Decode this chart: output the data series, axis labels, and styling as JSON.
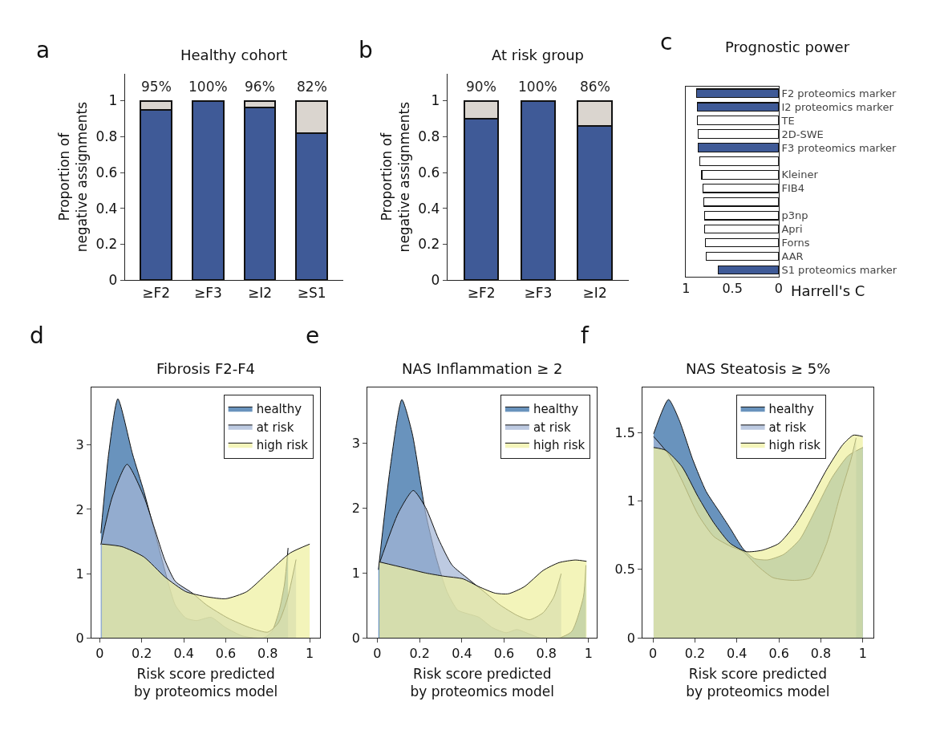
{
  "chart_data": [
    {
      "type": "bar",
      "stacked": true,
      "title": "Healthy cohort",
      "ylabel": "Proportion of\nnegative assignments",
      "categories": [
        "≥F2",
        "≥F3",
        "≥I2",
        "≥S1"
      ],
      "ylim": [
        0,
        1.15
      ],
      "yticks": [
        0,
        0.2,
        0.4,
        0.6,
        0.8,
        1
      ],
      "grid": false,
      "series": [
        {
          "color": "#3f5a97",
          "values": [
            0.95,
            1.0,
            0.96,
            0.82
          ],
          "value_labels": [
            "95%",
            "100%",
            "96%",
            "82%"
          ]
        },
        {
          "color": "#dad5cf",
          "values": [
            0.05,
            0,
            0.04,
            0.18
          ]
        }
      ],
      "annotations": [
        "a"
      ]
    },
    {
      "type": "bar",
      "stacked": true,
      "title": "At risk group",
      "ylabel": "Proportion of\nnegative assignments",
      "categories": [
        "≥F2",
        "≥F3",
        "≥I2"
      ],
      "ylim": [
        0,
        1.15
      ],
      "yticks": [
        0,
        0.2,
        0.4,
        0.6,
        0.8,
        1
      ],
      "grid": false,
      "series": [
        {
          "color": "#3f5a97",
          "values": [
            0.9,
            1.0,
            0.86
          ],
          "value_labels": [
            "90%",
            "100%",
            "86%"
          ]
        },
        {
          "color": "#dad5cf",
          "values": [
            0.1,
            0,
            0.14
          ]
        }
      ],
      "annotations": [
        "b"
      ]
    },
    {
      "type": "bar",
      "orientation": "horizontal",
      "title": "Prognostic power",
      "xlabel": "Harrell's C",
      "categories": [
        "F2 proteomics marker",
        "I2 proteomics marker",
        "TE",
        "2D-SWE",
        "F3 proteomics marker",
        null,
        "Kleiner",
        "FIB4",
        null,
        "p3np",
        "Apri",
        "Forns",
        "AAR",
        "S1 proteomics marker"
      ],
      "xlim": [
        1,
        0
      ],
      "xticks": [
        1,
        0.5,
        0
      ],
      "grid": false,
      "values": [
        0.89,
        0.88,
        0.88,
        0.87,
        0.87,
        0.85,
        0.83,
        0.82,
        0.81,
        0.8,
        0.8,
        0.79,
        0.78,
        0.65
      ],
      "colors": [
        "#3f5a97",
        "#3f5a97",
        "#ffffff",
        "#ffffff",
        "#3f5a97",
        "#ffffff",
        "#ffffff",
        "#ffffff",
        "#ffffff",
        "#ffffff",
        "#ffffff",
        "#ffffff",
        "#ffffff",
        "#3f5a97"
      ],
      "annotations": [
        "c"
      ]
    },
    {
      "type": "area",
      "title": "Fibrosis F2-F4",
      "xlabel": "Risk score predicted\nby proteomics model",
      "xlim": [
        -0.04,
        1.05
      ],
      "xticks": [
        0,
        0.2,
        0.4,
        0.6,
        0.8,
        1
      ],
      "ylim": [
        0,
        3.9
      ],
      "yticks": [
        0,
        1,
        2,
        3
      ],
      "grid": false,
      "legend": "top right",
      "marker": "none",
      "series": [
        {
          "name": "healthy",
          "color": "#2f6aa3",
          "x": [
            0.005,
            0.042,
            0.086,
            0.156,
            0.21,
            0.26,
            0.31,
            0.36,
            0.41,
            0.46,
            0.53,
            0.6,
            0.68,
            0.78,
            0.82,
            0.855,
            0.88,
            0.897
          ],
          "values": [
            1.63,
            2.86,
            3.72,
            2.86,
            2.28,
            1.67,
            1.05,
            0.51,
            0.31,
            0.27,
            0.32,
            0.16,
            0.03,
            0,
            0.1,
            0.43,
            0.84,
            1.4
          ]
        },
        {
          "name": "at risk",
          "color": "#a3b5d6",
          "x": [
            0.005,
            0.06,
            0.13,
            0.21,
            0.26,
            0.31,
            0.36,
            0.44,
            0.51,
            0.61,
            0.715,
            0.8,
            0.85,
            0.893,
            0.935
          ],
          "values": [
            1.45,
            2.2,
            2.7,
            2.2,
            1.71,
            1.21,
            0.88,
            0.7,
            0.51,
            0.31,
            0.16,
            0.09,
            0.23,
            0.6,
            1.22
          ]
        },
        {
          "name": "high risk",
          "color": "#eef0a0",
          "x": [
            0.01,
            0.105,
            0.21,
            0.31,
            0.41,
            0.51,
            0.6,
            0.7,
            0.8,
            0.906,
            1.0
          ],
          "values": [
            1.46,
            1.42,
            1.26,
            0.95,
            0.72,
            0.64,
            0.61,
            0.72,
            1.01,
            1.32,
            1.46
          ]
        }
      ],
      "annotations": [
        "d"
      ]
    },
    {
      "type": "area",
      "title": "NAS Inflammation ≥ 2",
      "xlabel": "Risk score predicted\nby proteomics model",
      "xlim": [
        -0.047,
        1.04
      ],
      "xticks": [
        0,
        0.2,
        0.4,
        0.6,
        0.8,
        1
      ],
      "ylim": [
        0,
        3.86
      ],
      "yticks": [
        0,
        1,
        2,
        3
      ],
      "grid": false,
      "legend": "top right",
      "marker": "none",
      "series": [
        {
          "name": "healthy",
          "color": "#2f6aa3",
          "x": [
            0.005,
            0.06,
            0.116,
            0.165,
            0.228,
            0.278,
            0.33,
            0.38,
            0.43,
            0.48,
            0.544,
            0.61,
            0.66,
            0.72,
            0.77,
            0.86,
            0.92,
            0.975,
            0.987
          ],
          "values": [
            1.05,
            2.6,
            3.67,
            3.15,
            1.93,
            1.24,
            0.71,
            0.43,
            0.37,
            0.32,
            0.16,
            0.08,
            0.13,
            0.06,
            0,
            0,
            0.1,
            0.63,
            1.12
          ]
        },
        {
          "name": "at risk",
          "color": "#a3b5d6",
          "x": [
            0.01,
            0.1,
            0.17,
            0.228,
            0.29,
            0.354,
            0.43,
            0.506,
            0.58,
            0.66,
            0.72,
            0.785,
            0.835,
            0.87
          ],
          "values": [
            1.15,
            1.93,
            2.27,
            2.01,
            1.52,
            1.12,
            0.91,
            0.71,
            0.51,
            0.35,
            0.28,
            0.39,
            0.63,
            0.99
          ]
        },
        {
          "name": "high risk",
          "color": "#eef0a0",
          "x": [
            0.01,
            0.127,
            0.228,
            0.316,
            0.405,
            0.48,
            0.557,
            0.62,
            0.696,
            0.785,
            0.86,
            0.937,
            0.99
          ],
          "values": [
            1.17,
            1.08,
            1.0,
            0.95,
            0.91,
            0.79,
            0.69,
            0.68,
            0.79,
            1.04,
            1.16,
            1.2,
            1.18
          ]
        }
      ],
      "annotations": [
        "e"
      ]
    },
    {
      "type": "area",
      "title": "NAS Steatosis ≥ 5%",
      "xlabel": "Risk score predicted\nby proteomics model",
      "xlim": [
        -0.05,
        1.049
      ],
      "xticks": [
        0,
        0.2,
        0.4,
        0.6,
        0.8,
        1
      ],
      "ylim": [
        0,
        1.83
      ],
      "yticks": [
        0,
        0.5,
        1,
        1.5
      ],
      "grid": false,
      "legend": "top",
      "marker": "none",
      "series": [
        {
          "name": "healthy",
          "color": "#2f6aa3",
          "x": [
            0.003,
            0.074,
            0.125,
            0.19,
            0.253,
            0.317,
            0.368,
            0.43,
            0.483,
            0.547,
            0.623,
            0.7,
            0.776,
            0.853,
            0.93,
            1.0
          ],
          "values": [
            1.49,
            1.74,
            1.59,
            1.3,
            1.07,
            0.92,
            0.8,
            0.65,
            0.58,
            0.57,
            0.61,
            0.72,
            0.94,
            1.17,
            1.33,
            1.39
          ]
        },
        {
          "name": "at risk",
          "color": "#a3b5d6",
          "x": [
            0.003,
            0.074,
            0.138,
            0.215,
            0.29,
            0.368,
            0.43,
            0.495,
            0.572,
            0.674,
            0.75,
            0.828,
            0.89,
            0.943,
            0.968
          ],
          "values": [
            1.47,
            1.34,
            1.15,
            0.9,
            0.74,
            0.67,
            0.63,
            0.53,
            0.44,
            0.42,
            0.44,
            0.69,
            1.03,
            1.3,
            1.46
          ]
        },
        {
          "name": "high risk",
          "color": "#eef0a0",
          "x": [
            0.003,
            0.06,
            0.138,
            0.215,
            0.29,
            0.368,
            0.444,
            0.52,
            0.6,
            0.674,
            0.75,
            0.828,
            0.904,
            0.955,
            1.0
          ],
          "values": [
            1.39,
            1.37,
            1.25,
            1.03,
            0.84,
            0.69,
            0.63,
            0.64,
            0.69,
            0.82,
            1.01,
            1.23,
            1.41,
            1.48,
            1.47
          ]
        }
      ],
      "annotations": [
        "f"
      ]
    }
  ]
}
